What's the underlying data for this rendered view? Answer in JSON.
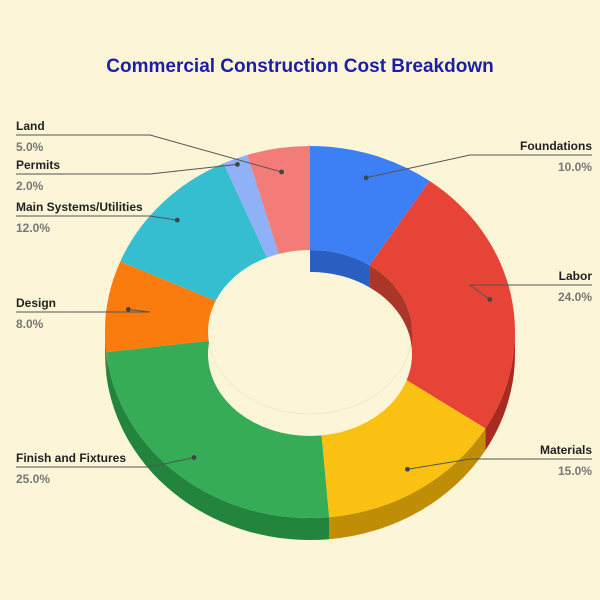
{
  "chart_data": {
    "type": "pie",
    "style": "3d-donut",
    "title": "Commercial Construction Cost Breakdown",
    "slices": [
      {
        "label": "Foundations",
        "value": 10.0,
        "value_label": "10.0%",
        "color": "#3d7ff5",
        "side_color": "#1f55c0"
      },
      {
        "label": "Labor",
        "value": 24.0,
        "value_label": "24.0%",
        "color": "#e64436",
        "side_color": "#a82a20"
      },
      {
        "label": "Materials",
        "value": 15.0,
        "value_label": "15.0%",
        "color": "#fbc112",
        "side_color": "#c08d06"
      },
      {
        "label": "Finish and Fixtures",
        "value": 25.0,
        "value_label": "25.0%",
        "color": "#35ac55",
        "side_color": "#22843d"
      },
      {
        "label": "Design",
        "value": 8.0,
        "value_label": "8.0%",
        "color": "#fa7b0e",
        "side_color": "#c05a05"
      },
      {
        "label": "Main Systems/Utilities",
        "value": 12.0,
        "value_label": "12.0%",
        "color": "#35bdd0",
        "side_color": "#1e8f9f"
      },
      {
        "label": "Permits",
        "value": 2.0,
        "value_label": "2.0%",
        "color": "#8eb1f7",
        "side_color": "#5a7fcf"
      },
      {
        "label": "Land",
        "value": 5.0,
        "value_label": "5.0%",
        "color": "#f47c78",
        "side_color": "#c25452"
      }
    ],
    "legend": "none",
    "leader_lines": true
  }
}
